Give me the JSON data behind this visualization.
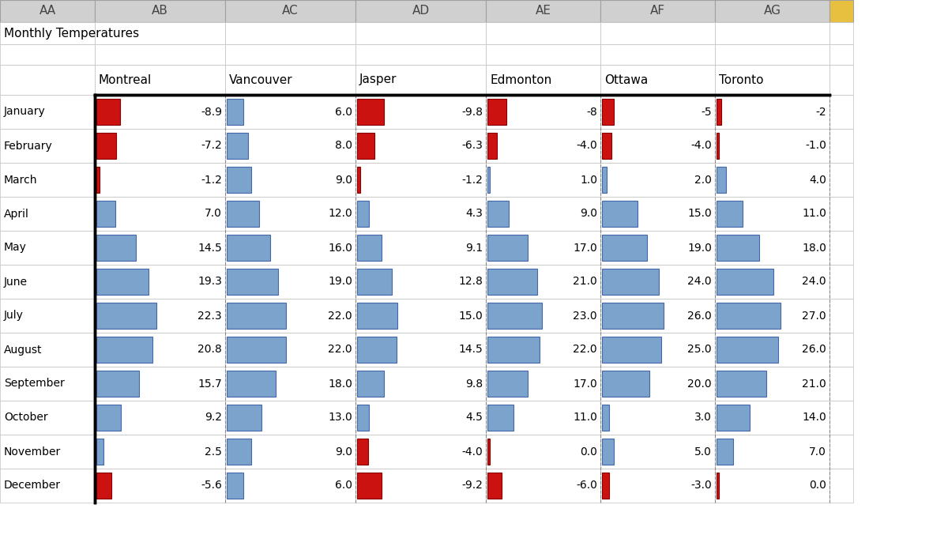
{
  "col_headers": [
    "AA",
    "AB",
    "AC",
    "AD",
    "AE",
    "AF",
    "AG"
  ],
  "title": "Monthly Temperatures",
  "city_headers": [
    "Montreal",
    "Vancouver",
    "Jasper",
    "Edmonton",
    "Ottawa",
    "Toronto"
  ],
  "months": [
    "January",
    "February",
    "March",
    "April",
    "May",
    "June",
    "July",
    "August",
    "September",
    "October",
    "November",
    "December"
  ],
  "data": {
    "Montreal": [
      -8.9,
      -7.2,
      -1.2,
      7.0,
      14.5,
      19.3,
      22.3,
      20.8,
      15.7,
      9.2,
      2.5,
      -5.6
    ],
    "Vancouver": [
      6.0,
      8.0,
      9.0,
      12.0,
      16.0,
      19.0,
      22.0,
      22.0,
      18.0,
      13.0,
      9.0,
      6.0
    ],
    "Jasper": [
      -9.8,
      -6.3,
      -1.2,
      4.3,
      9.1,
      12.8,
      15.0,
      14.5,
      9.8,
      4.5,
      -4.0,
      -9.2
    ],
    "Edmonton": [
      -8.0,
      -4.0,
      1.0,
      9.0,
      17.0,
      21.0,
      23.0,
      22.0,
      17.0,
      11.0,
      0.0,
      -6.0
    ],
    "Ottawa": [
      -5.0,
      -4.0,
      2.0,
      15.0,
      19.0,
      24.0,
      26.0,
      25.0,
      20.0,
      3.0,
      5.0,
      -3.0
    ],
    "Toronto": [
      -2.0,
      -1.0,
      4.0,
      11.0,
      18.0,
      24.0,
      27.0,
      26.0,
      21.0,
      14.0,
      7.0,
      0.0
    ]
  },
  "display_values": {
    "Montreal": [
      "-8.9",
      "-7.2",
      "-1.2",
      "7.0",
      "14.5",
      "19.3",
      "22.3",
      "20.8",
      "15.7",
      "9.2",
      "2.5",
      "-5.6"
    ],
    "Vancouver": [
      "6.0",
      "8.0",
      "9.0",
      "12.0",
      "16.0",
      "19.0",
      "22.0",
      "22.0",
      "18.0",
      "13.0",
      "9.0",
      "6.0"
    ],
    "Jasper": [
      "-9.8",
      "-6.3",
      "-1.2",
      "4.3",
      "9.1",
      "12.8",
      "15.0",
      "14.5",
      "9.8",
      "4.5",
      "-4.0",
      "-9.2"
    ],
    "Edmonton": [
      "-8",
      "-4.0",
      "1.0",
      "9.0",
      "17.0",
      "21.0",
      "23.0",
      "22.0",
      "17.0",
      "11.0",
      "0.0",
      "-6.0"
    ],
    "Ottawa": [
      "-5",
      "-4.0",
      "2.0",
      "15.0",
      "19.0",
      "24.0",
      "26.0",
      "25.0",
      "20.0",
      "3.0",
      "5.0",
      "-3.0"
    ],
    "Toronto": [
      "-2",
      "-1.0",
      "4.0",
      "11.0",
      "18.0",
      "24.0",
      "27.0",
      "26.0",
      "21.0",
      "14.0",
      "7.0",
      "0.0"
    ]
  },
  "max_val": 27.0,
  "bg_color": "#ffffff",
  "header_bg": "#d0d0d0",
  "grid_color": "#c0c0c0",
  "red_icon": "#cc1111",
  "blue_icon": "#7ba3cc",
  "yellow_cell": "#e8c040",
  "fig_width": 12.0,
  "fig_height": 6.96
}
